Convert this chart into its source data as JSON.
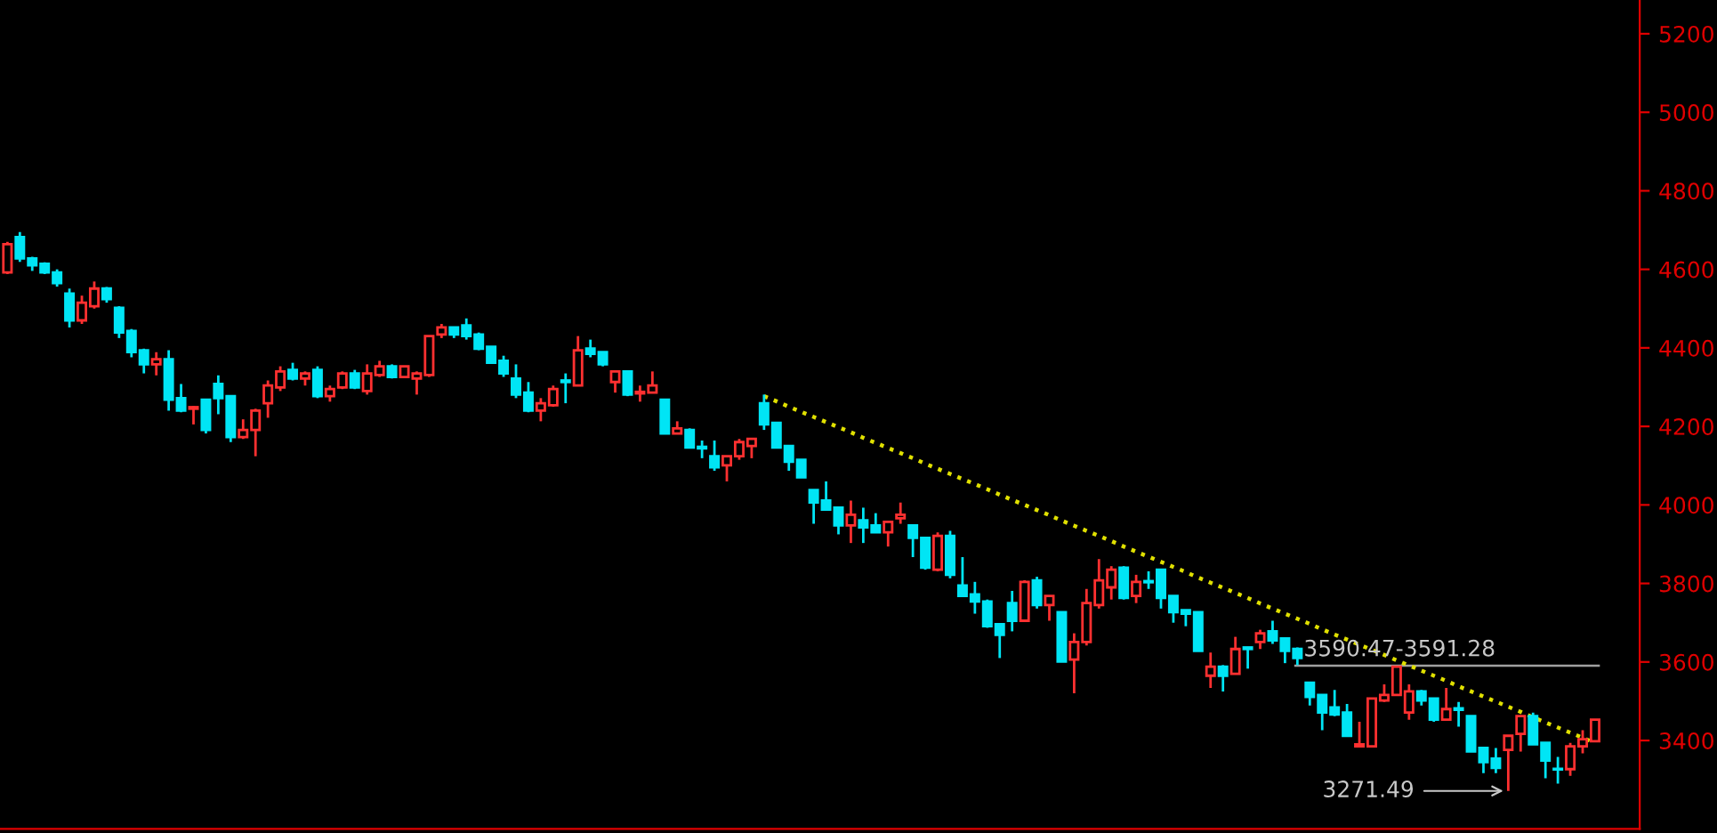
{
  "chart_data": {
    "type": "candlestick",
    "categories": [
      null,
      null,
      null,
      null,
      null,
      null,
      null,
      null,
      null,
      null,
      null,
      null,
      null,
      null,
      null,
      null,
      null,
      null,
      null,
      null,
      null,
      null,
      null,
      null,
      null,
      null,
      null,
      null,
      null,
      null,
      null,
      null,
      null,
      null,
      null,
      null,
      null,
      null,
      null,
      null,
      null,
      null,
      null,
      null,
      null,
      null,
      null,
      null,
      null,
      null,
      null,
      null,
      null,
      null,
      null,
      null,
      null,
      null,
      null,
      null,
      null,
      null,
      null,
      null,
      null,
      null,
      null,
      null,
      null,
      null,
      null,
      null,
      null,
      null,
      null,
      null,
      null,
      null,
      null,
      null,
      null,
      null,
      null,
      null,
      null,
      null,
      null,
      null,
      null,
      null,
      null,
      null,
      null,
      null,
      null,
      null,
      null,
      null,
      null,
      null,
      null,
      null,
      null,
      null,
      null,
      null,
      null,
      null,
      null,
      null,
      null,
      null,
      null,
      null,
      null,
      null,
      null,
      null,
      null,
      null,
      null,
      null,
      null,
      null,
      null,
      null,
      null,
      null,
      null
    ],
    "ohlc": [
      [
        4592,
        4670,
        4588,
        4664
      ],
      [
        4682,
        4695,
        4619,
        4628
      ],
      [
        4628,
        4632,
        4596,
        4610
      ],
      [
        4614,
        4618,
        4588,
        4592
      ],
      [
        4592,
        4600,
        4556,
        4565
      ],
      [
        4538,
        4551,
        4452,
        4470
      ],
      [
        4470,
        4533,
        4461,
        4515
      ],
      [
        4506,
        4569,
        4500,
        4551
      ],
      [
        4551,
        4555,
        4515,
        4524
      ],
      [
        4502,
        4506,
        4425,
        4439
      ],
      [
        4443,
        4448,
        4376,
        4389
      ],
      [
        4394,
        4398,
        4335,
        4358
      ],
      [
        4358,
        4389,
        4330,
        4371
      ],
      [
        4371,
        4394,
        4240,
        4268
      ],
      [
        4272,
        4308,
        4236,
        4240
      ],
      [
        4245,
        4252,
        4205,
        4249
      ],
      [
        4268,
        4268,
        4182,
        4191
      ],
      [
        4308,
        4330,
        4231,
        4272
      ],
      [
        4277,
        4277,
        4160,
        4173
      ],
      [
        4173,
        4218,
        4168,
        4191
      ],
      [
        4191,
        4245,
        4124,
        4240
      ],
      [
        4259,
        4317,
        4222,
        4304
      ],
      [
        4299,
        4353,
        4290,
        4340
      ],
      [
        4344,
        4362,
        4317,
        4322
      ],
      [
        4322,
        4340,
        4304,
        4335
      ],
      [
        4344,
        4353,
        4272,
        4277
      ],
      [
        4277,
        4304,
        4263,
        4295
      ],
      [
        4299,
        4340,
        4295,
        4335
      ],
      [
        4335,
        4344,
        4295,
        4299
      ],
      [
        4290,
        4358,
        4281,
        4335
      ],
      [
        4331,
        4367,
        4326,
        4353
      ],
      [
        4353,
        4358,
        4322,
        4326
      ],
      [
        4326,
        4353,
        4326,
        4353
      ],
      [
        4322,
        4340,
        4281,
        4335
      ],
      [
        4331,
        4430,
        4326,
        4430
      ],
      [
        4434,
        4461,
        4425,
        4452
      ],
      [
        4452,
        4452,
        4425,
        4434
      ],
      [
        4457,
        4475,
        4421,
        4430
      ],
      [
        4434,
        4439,
        4394,
        4398
      ],
      [
        4403,
        4403,
        4362,
        4362
      ],
      [
        4367,
        4380,
        4326,
        4335
      ],
      [
        4322,
        4358,
        4272,
        4281
      ],
      [
        4286,
        4313,
        4236,
        4240
      ],
      [
        4240,
        4272,
        4213,
        4259
      ],
      [
        4254,
        4304,
        4250,
        4295
      ],
      [
        4317,
        4335,
        4259,
        4313
      ],
      [
        4304,
        4430,
        4304,
        4394
      ],
      [
        4398,
        4421,
        4376,
        4385
      ],
      [
        4389,
        4389,
        4353,
        4358
      ],
      [
        4313,
        4340,
        4286,
        4340
      ],
      [
        4340,
        4340,
        4277,
        4281
      ],
      [
        4284,
        4304,
        4263,
        4288
      ],
      [
        4286,
        4340,
        4286,
        4304
      ],
      [
        4268,
        4268,
        4182,
        4182
      ],
      [
        4182,
        4213,
        4182,
        4195
      ],
      [
        4191,
        4195,
        4146,
        4146
      ],
      [
        4148,
        4164,
        4119,
        4144
      ],
      [
        4124,
        4164,
        4087,
        4096
      ],
      [
        4101,
        4124,
        4060,
        4124
      ],
      [
        4124,
        4168,
        4115,
        4160
      ],
      [
        4150,
        4168,
        4119,
        4168
      ],
      [
        4259,
        4281,
        4191,
        4205
      ],
      [
        4209,
        4209,
        4146,
        4146
      ],
      [
        4150,
        4150,
        4087,
        4110
      ],
      [
        4115,
        4115,
        4070,
        4070
      ],
      [
        4038,
        4038,
        3952,
        4006
      ],
      [
        4011,
        4060,
        3988,
        3988
      ],
      [
        3993,
        3993,
        3925,
        3948
      ],
      [
        3948,
        4011,
        3903,
        3975
      ],
      [
        3961,
        3993,
        3903,
        3943
      ],
      [
        3948,
        3979,
        3930,
        3930
      ],
      [
        3930,
        3957,
        3894,
        3957
      ],
      [
        3966,
        4006,
        3952,
        3975
      ],
      [
        3948,
        3948,
        3867,
        3916
      ],
      [
        3916,
        3916,
        3835,
        3840
      ],
      [
        3835,
        3930,
        3831,
        3921
      ],
      [
        3921,
        3934,
        3813,
        3822
      ],
      [
        3795,
        3867,
        3768,
        3768
      ],
      [
        3772,
        3804,
        3723,
        3754
      ],
      [
        3754,
        3759,
        3687,
        3691
      ],
      [
        3696,
        3696,
        3610,
        3669
      ],
      [
        3750,
        3781,
        3678,
        3705
      ],
      [
        3705,
        3808,
        3705,
        3804
      ],
      [
        3808,
        3817,
        3736,
        3745
      ],
      [
        3745,
        3768,
        3705,
        3768
      ],
      [
        3727,
        3727,
        3601,
        3601
      ],
      [
        3606,
        3673,
        3520,
        3651
      ],
      [
        3651,
        3786,
        3642,
        3750
      ],
      [
        3745,
        3862,
        3736,
        3808
      ],
      [
        3790,
        3844,
        3759,
        3835
      ],
      [
        3840,
        3844,
        3759,
        3763
      ],
      [
        3768,
        3822,
        3750,
        3804
      ],
      [
        3806,
        3831,
        3786,
        3803
      ],
      [
        3835,
        3835,
        3736,
        3763
      ],
      [
        3768,
        3768,
        3700,
        3727
      ],
      [
        3732,
        3732,
        3691,
        3723
      ],
      [
        3727,
        3727,
        3628,
        3628
      ],
      [
        3565,
        3624,
        3534,
        3588
      ],
      [
        3588,
        3592,
        3525,
        3565
      ],
      [
        3570,
        3664,
        3570,
        3633
      ],
      [
        3637,
        3637,
        3583,
        3633
      ],
      [
        3651,
        3682,
        3633,
        3673
      ],
      [
        3678,
        3705,
        3646,
        3655
      ],
      [
        3660,
        3660,
        3597,
        3628
      ],
      [
        3633,
        3637,
        3592,
        3610
      ],
      [
        3547,
        3547,
        3489,
        3511
      ],
      [
        3516,
        3516,
        3426,
        3471
      ],
      [
        3484,
        3529,
        3462,
        3466
      ],
      [
        3471,
        3493,
        3412,
        3412
      ],
      [
        3385,
        3448,
        3385,
        3390
      ],
      [
        3385,
        3507,
        3385,
        3507
      ],
      [
        3502,
        3543,
        3498,
        3516
      ],
      [
        3516,
        3588,
        3516,
        3588
      ],
      [
        3471,
        3543,
        3453,
        3525
      ],
      [
        3525,
        3529,
        3489,
        3502
      ],
      [
        3507,
        3507,
        3448,
        3453
      ],
      [
        3453,
        3534,
        3453,
        3480
      ],
      [
        3482,
        3498,
        3435,
        3478
      ],
      [
        3462,
        3462,
        3372,
        3372
      ],
      [
        3381,
        3381,
        3317,
        3345
      ],
      [
        3354,
        3381,
        3317,
        3330
      ],
      [
        3376,
        3412,
        3271.49,
        3412
      ],
      [
        3417,
        3462,
        3372,
        3462
      ],
      [
        3462,
        3471,
        3390,
        3390
      ],
      [
        3394,
        3394,
        3304,
        3349
      ],
      [
        3328,
        3358,
        3290,
        3326
      ],
      [
        3327,
        3394,
        3310,
        3385
      ],
      [
        3385,
        3426,
        3367,
        3403
      ],
      [
        3398,
        3453,
        3398,
        3453
      ]
    ],
    "colors": [
      "#ff3030",
      "#00e5f5",
      "#00e5f5",
      "#00e5f5",
      "#00e5f5",
      "#00e5f5",
      "#ff3030",
      "#ff3030",
      "#00e5f5",
      "#00e5f5",
      "#00e5f5",
      "#00e5f5",
      "#ff3030",
      "#00e5f5",
      "#00e5f5",
      "#ff3030",
      "#00e5f5",
      "#00e5f5",
      "#00e5f5",
      "#ff3030",
      "#ff3030",
      "#ff3030",
      "#ff3030",
      "#00e5f5",
      "#ff3030",
      "#00e5f5",
      "#ff3030",
      "#ff3030",
      "#00e5f5",
      "#ff3030",
      "#ff3030",
      "#00e5f5",
      "#ff3030",
      "#ff3030",
      "#ff3030",
      "#ff3030",
      "#00e5f5",
      "#00e5f5",
      "#00e5f5",
      "#00e5f5",
      "#00e5f5",
      "#00e5f5",
      "#00e5f5",
      "#ff3030",
      "#ff3030",
      "#00e5f5",
      "#ff3030",
      "#00e5f5",
      "#00e5f5",
      "#ff3030",
      "#00e5f5",
      "#ff3030",
      "#ff3030",
      "#00e5f5",
      "#ff3030",
      "#00e5f5",
      "#00e5f5",
      "#00e5f5",
      "#ff3030",
      "#ff3030",
      "#ff3030",
      "#00e5f5",
      "#00e5f5",
      "#00e5f5",
      "#00e5f5",
      "#00e5f5",
      "#00e5f5",
      "#00e5f5",
      "#ff3030",
      "#00e5f5",
      "#00e5f5",
      "#ff3030",
      "#ff3030",
      "#00e5f5",
      "#00e5f5",
      "#ff3030",
      "#00e5f5",
      "#00e5f5",
      "#00e5f5",
      "#00e5f5",
      "#00e5f5",
      "#00e5f5",
      "#ff3030",
      "#00e5f5",
      "#ff3030",
      "#00e5f5",
      "#ff3030",
      "#ff3030",
      "#ff3030",
      "#ff3030",
      "#00e5f5",
      "#ff3030",
      "#00e5f5",
      "#00e5f5",
      "#00e5f5",
      "#00e5f5",
      "#00e5f5",
      "#ff3030",
      "#00e5f5",
      "#ff3030",
      "#00e5f5",
      "#ff3030",
      "#00e5f5",
      "#00e5f5",
      "#00e5f5",
      "#00e5f5",
      "#00e5f5",
      "#00e5f5",
      "#00e5f5",
      "#ff3030",
      "#ff3030",
      "#ff3030",
      "#ff3030",
      "#ff3030",
      "#00e5f5",
      "#00e5f5",
      "#ff3030",
      "#00e5f5",
      "#00e5f5",
      "#00e5f5",
      "#00e5f5",
      "#ff3030",
      "#ff3030",
      "#00e5f5",
      "#00e5f5",
      "#00e5f5",
      "#ff3030",
      "#ff3030",
      "#ff3030"
    ],
    "series": [
      {
        "type": "line",
        "color": "#e0e000",
        "line_style": "dotted",
        "values": [
          null,
          null,
          null,
          null,
          null,
          null,
          null,
          null,
          null,
          null,
          null,
          null,
          null,
          null,
          null,
          null,
          null,
          null,
          null,
          null,
          null,
          null,
          null,
          null,
          null,
          null,
          null,
          null,
          null,
          null,
          null,
          null,
          null,
          null,
          null,
          null,
          null,
          null,
          null,
          null,
          null,
          null,
          null,
          null,
          null,
          null,
          null,
          null,
          null,
          null,
          null,
          null,
          null,
          null,
          null,
          null,
          null,
          null,
          null,
          null,
          null,
          4277,
          4264,
          4250,
          4237,
          4224,
          4211,
          4198,
          4185,
          4171,
          4158,
          4145,
          4132,
          4119,
          4105,
          4092,
          4079,
          4066,
          4053,
          4040,
          4026,
          4013,
          4000,
          3987,
          3974,
          3960,
          3947,
          3934,
          3921,
          3908,
          3894,
          3881,
          3868,
          3855,
          3842,
          3829,
          3815,
          3802,
          3789,
          3776,
          3763,
          3749,
          3736,
          3723,
          3710,
          3697,
          3683,
          3670,
          3657,
          3644,
          3631,
          3618,
          3604,
          3591,
          3578,
          3565,
          3552,
          3538,
          3525,
          3512,
          3499,
          3486,
          3473,
          3459,
          3446,
          3433,
          3420,
          3407,
          3394
        ]
      }
    ],
    "ref_lines": [
      {
        "axis": "y",
        "value": 3590.47,
        "label": "3590.47-3591.28",
        "color": "#a0a0a0"
      }
    ],
    "annotations": [
      "3271.49"
    ],
    "ylim": [
      3175,
      5286
    ],
    "yticks": [
      3400,
      3600,
      3800,
      4000,
      4200,
      4400,
      4600,
      4800,
      5000,
      5200
    ],
    "tick_labels": "y",
    "grid": false,
    "legend": false
  }
}
